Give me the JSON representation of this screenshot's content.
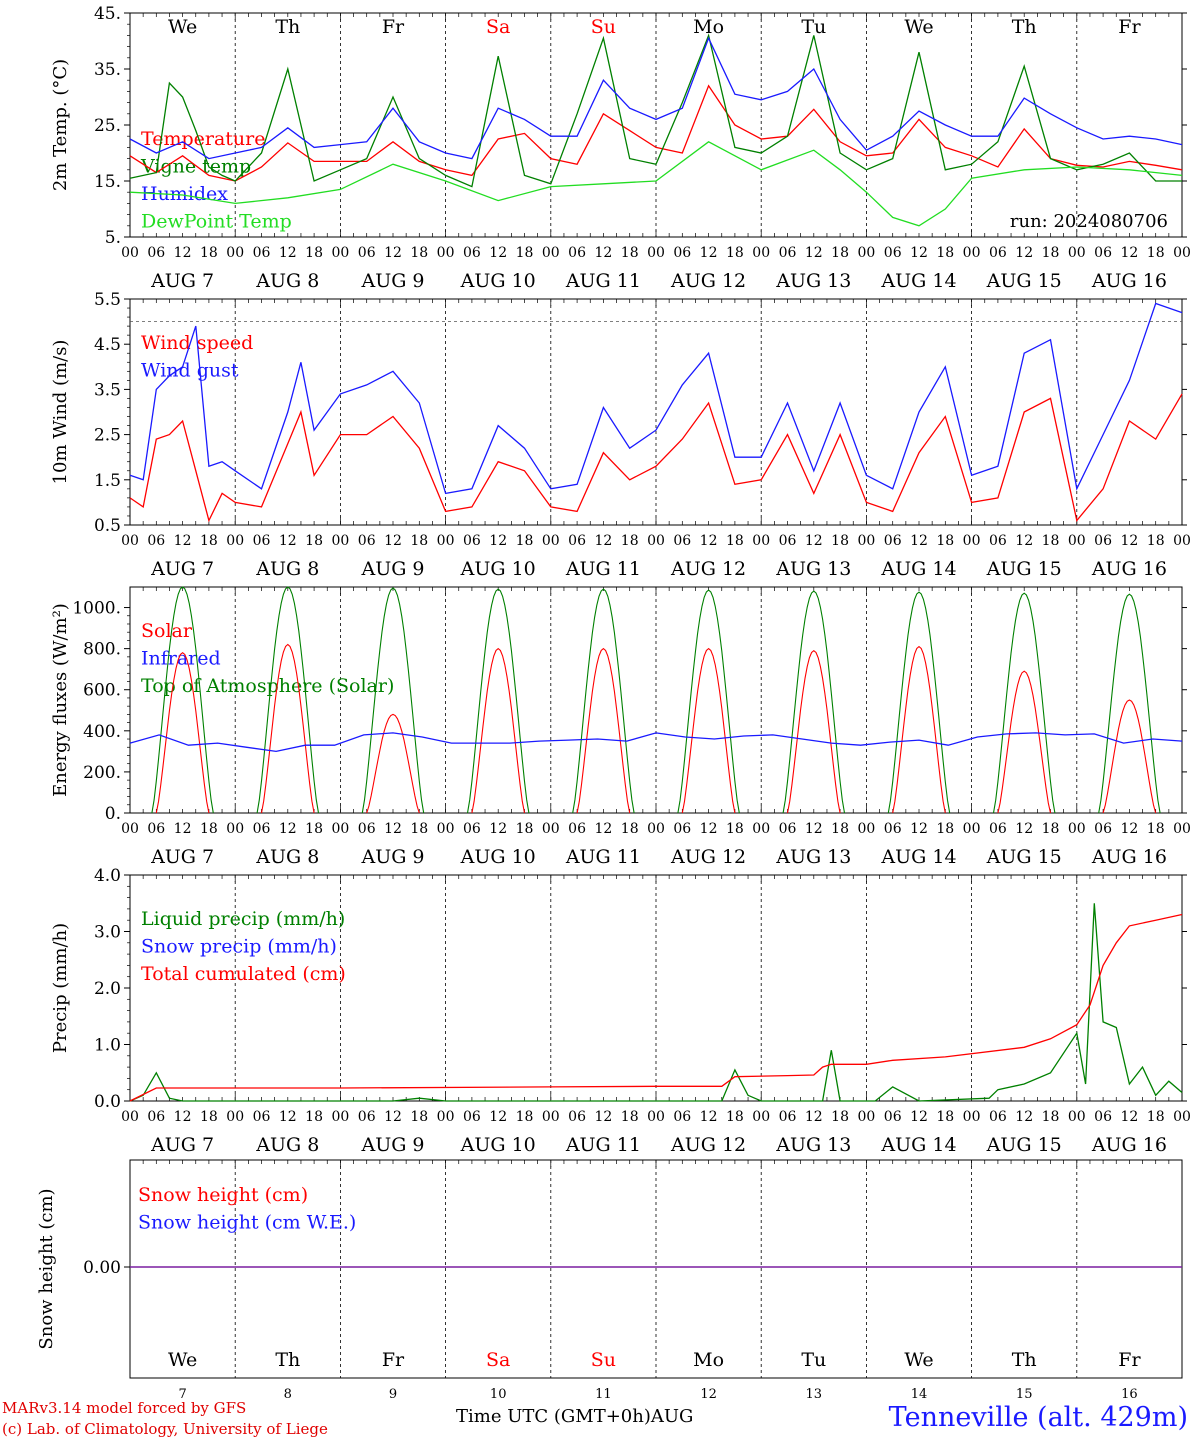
{
  "run_label": "run: 2024080706",
  "station": "Tenneville (alt. 429m)",
  "model_line": "MARv3.14 model forced by GFS",
  "lab_line": "(c) Lab. of Climatology, University of Liege",
  "time_axis_label": "Time UTC (GMT+0h)AUG",
  "colors": {
    "red": "#ff0000",
    "blue": "#1a1aff",
    "green": "#008000",
    "lightgreen": "#22dd22",
    "purple": "#7a1fa0"
  },
  "chart_data": {
    "type": "line",
    "days": [
      {
        "date": "AUG  7",
        "weekday": "We",
        "daynum": "7",
        "weekend": false
      },
      {
        "date": "AUG  8",
        "weekday": "Th",
        "daynum": "8",
        "weekend": false
      },
      {
        "date": "AUG  9",
        "weekday": "Fr",
        "daynum": "9",
        "weekend": false
      },
      {
        "date": "AUG 10",
        "weekday": "Sa",
        "daynum": "10",
        "weekend": true
      },
      {
        "date": "AUG 11",
        "weekday": "Su",
        "daynum": "11",
        "weekend": true
      },
      {
        "date": "AUG 12",
        "weekday": "Mo",
        "daynum": "12",
        "weekend": false
      },
      {
        "date": "AUG 13",
        "weekday": "Tu",
        "daynum": "13",
        "weekend": false
      },
      {
        "date": "AUG 14",
        "weekday": "We",
        "daynum": "14",
        "weekend": false
      },
      {
        "date": "AUG 15",
        "weekday": "Th",
        "daynum": "15",
        "weekend": false
      },
      {
        "date": "AUG 16",
        "weekday": "Fr",
        "daynum": "16",
        "weekend": false
      }
    ],
    "hour_ticks": [
      "00",
      "06",
      "12",
      "18"
    ],
    "end_tick": "00",
    "panels": [
      {
        "id": "temp",
        "ylabel": "2m Temp. (°C)",
        "ylim": [
          5,
          45
        ],
        "yticks": [
          5,
          15,
          25,
          35,
          45
        ],
        "yticklabels": [
          "5.",
          "15.",
          "25.",
          "35.",
          "45."
        ],
        "grid": "vertical dashed at day boundaries",
        "legend": [
          {
            "label": "Temperature",
            "color": "red"
          },
          {
            "label": "Vigne temp",
            "color": "green"
          },
          {
            "label": "Humidex",
            "color": "blue"
          },
          {
            "label": "DewPoint Temp",
            "color": "lightgreen"
          }
        ],
        "series": [
          {
            "name": "Temperature",
            "color": "red",
            "x_hours": [
              0,
              6,
              12,
              18,
              24,
              30,
              36,
              42,
              48,
              54,
              60,
              66,
              72,
              78,
              84,
              90,
              96,
              102,
              108,
              114,
              120,
              126,
              132,
              138,
              144,
              150,
              156,
              162,
              168,
              174,
              180,
              186,
              192,
              198,
              204,
              210,
              216,
              222,
              228,
              234,
              240
            ],
            "y": [
              19.5,
              16.5,
              19.5,
              16,
              15,
              17.5,
              21.8,
              18.5,
              18.5,
              18.5,
              22,
              18.5,
              17,
              16,
              22.5,
              23.5,
              19,
              18,
              27,
              24,
              21,
              20,
              32,
              25,
              22.5,
              23,
              27.8,
              22,
              19.5,
              20,
              26,
              21,
              19.5,
              17.5,
              24.3,
              19,
              17.8,
              17.5,
              18.5,
              17.8,
              17
            ]
          },
          {
            "name": "Vigne temp",
            "color": "green",
            "x_hours": [
              0,
              6,
              9,
              12,
              15,
              18,
              21,
              24,
              30,
              36,
              42,
              48,
              54,
              60,
              66,
              72,
              78,
              84,
              90,
              96,
              102,
              108,
              114,
              120,
              126,
              132,
              138,
              144,
              150,
              156,
              162,
              168,
              174,
              180,
              186,
              192,
              198,
              204,
              210,
              216,
              222,
              228,
              234,
              240
            ],
            "y": [
              15.5,
              16.5,
              32.5,
              30,
              24,
              17.5,
              16,
              15,
              20,
              35,
              15,
              17,
              19,
              30,
              19,
              16,
              14,
              37.3,
              16,
              14.5,
              27,
              40.5,
              19,
              18,
              29,
              41,
              21,
              20,
              23,
              41,
              20,
              17,
              19,
              38,
              17,
              18,
              22,
              35.5,
              19,
              17,
              18,
              20,
              15,
              15
            ]
          },
          {
            "name": "Humidex",
            "color": "blue",
            "x_hours": [
              0,
              6,
              12,
              18,
              24,
              30,
              36,
              42,
              48,
              54,
              60,
              66,
              72,
              78,
              84,
              90,
              96,
              102,
              108,
              114,
              120,
              126,
              132,
              138,
              144,
              150,
              156,
              162,
              168,
              174,
              180,
              186,
              192,
              198,
              204,
              210,
              216,
              222,
              228,
              234,
              240
            ],
            "y": [
              22.5,
              20,
              22,
              19,
              20,
              21,
              24.5,
              21,
              21.5,
              22,
              28,
              22,
              20,
              19,
              28,
              26,
              23,
              23,
              33,
              28,
              26,
              28,
              40.5,
              30.5,
              29.5,
              31,
              35,
              26,
              20.5,
              23,
              27.5,
              25,
              23,
              23,
              29.8,
              27,
              24.5,
              22.5,
              23,
              22.5,
              21.5
            ]
          },
          {
            "name": "DewPoint Temp",
            "color": "lightgreen",
            "x_hours": [
              0,
              12,
              24,
              36,
              48,
              60,
              72,
              84,
              96,
              108,
              120,
              132,
              138,
              144,
              156,
              162,
              168,
              174,
              180,
              186,
              192,
              204,
              216,
              228,
              240
            ],
            "y": [
              13,
              12.5,
              11,
              12,
              13.5,
              18,
              15,
              11.5,
              14,
              14.5,
              15,
              22,
              19.5,
              17,
              20.5,
              17,
              13,
              8.5,
              7,
              10,
              15.5,
              17,
              17.5,
              17,
              16
            ]
          }
        ]
      },
      {
        "id": "wind",
        "ylabel": "10m Wind (m/s)",
        "ylim": [
          0.5,
          5.5
        ],
        "yticks": [
          0.5,
          1.5,
          2.5,
          3.5,
          4.5,
          5.5
        ],
        "yticklabels": [
          "0.5",
          "1.5",
          "2.5",
          "3.5",
          "4.5",
          "5.5"
        ],
        "hline": 5.0,
        "legend": [
          {
            "label": "Wind speed",
            "color": "red"
          },
          {
            "label": "Wind gust",
            "color": "blue"
          }
        ],
        "series": [
          {
            "name": "Wind speed",
            "color": "red",
            "x_hours": [
              0,
              3,
              6,
              9,
              12,
              15,
              18,
              21,
              24,
              30,
              36,
              39,
              42,
              48,
              54,
              60,
              66,
              72,
              78,
              84,
              90,
              96,
              102,
              108,
              114,
              120,
              126,
              132,
              138,
              144,
              150,
              156,
              162,
              168,
              174,
              180,
              186,
              192,
              198,
              204,
              210,
              216,
              222,
              228,
              234,
              240
            ],
            "y": [
              1.1,
              0.9,
              2.4,
              2.5,
              2.8,
              1.7,
              0.6,
              1.2,
              1.0,
              0.9,
              2.3,
              3.0,
              1.6,
              2.5,
              2.5,
              2.9,
              2.2,
              0.8,
              0.9,
              1.9,
              1.7,
              0.9,
              0.8,
              2.1,
              1.5,
              1.8,
              2.4,
              3.2,
              1.4,
              1.5,
              2.5,
              1.2,
              2.5,
              1.0,
              0.8,
              2.1,
              2.9,
              1.0,
              1.1,
              3.0,
              3.3,
              0.6,
              1.3,
              2.8,
              2.4,
              3.4
            ]
          },
          {
            "name": "Wind gust",
            "color": "blue",
            "x_hours": [
              0,
              3,
              6,
              9,
              12,
              15,
              18,
              21,
              24,
              30,
              36,
              39,
              42,
              48,
              54,
              60,
              66,
              72,
              78,
              84,
              90,
              96,
              102,
              108,
              114,
              120,
              126,
              132,
              138,
              144,
              150,
              156,
              162,
              168,
              174,
              180,
              186,
              192,
              198,
              204,
              210,
              216,
              222,
              228,
              234,
              240
            ],
            "y": [
              1.6,
              1.5,
              3.5,
              3.8,
              4.0,
              4.9,
              1.8,
              1.9,
              1.7,
              1.3,
              3.0,
              4.1,
              2.6,
              3.4,
              3.6,
              3.9,
              3.2,
              1.2,
              1.3,
              2.7,
              2.2,
              1.3,
              1.4,
              3.1,
              2.2,
              2.6,
              3.6,
              4.3,
              2.0,
              2.0,
              3.2,
              1.7,
              3.2,
              1.6,
              1.3,
              3.0,
              4.0,
              1.6,
              1.8,
              4.3,
              4.6,
              1.3,
              2.5,
              3.7,
              5.4,
              5.2
            ]
          }
        ]
      },
      {
        "id": "energy",
        "ylabel": "Energy fluxes (W/m²)",
        "ylim": [
          0,
          1100
        ],
        "yticks": [
          0,
          200,
          400,
          600,
          800,
          1000
        ],
        "yticklabels": [
          "0.",
          "200.",
          "400.",
          "600.",
          "800.",
          "1000."
        ],
        "legend": [
          {
            "label": "Solar",
            "color": "red"
          },
          {
            "label": "Infrared",
            "color": "blue"
          },
          {
            "label": "Top of Atmosphere (Solar)",
            "color": "green"
          }
        ],
        "toa_daily_peaks": [
          1100,
          1100,
          1095,
          1090,
          1090,
          1085,
          1080,
          1075,
          1070,
          1065
        ],
        "solar_daily_peaks": [
          780,
          820,
          480,
          800,
          800,
          800,
          790,
          810,
          690,
          550
        ],
        "infrared_values": [
          340,
          380,
          330,
          340,
          320,
          300,
          330,
          330,
          380,
          390,
          370,
          340,
          340,
          340,
          350,
          355,
          360,
          350,
          390,
          370,
          360,
          375,
          380,
          360,
          340,
          330,
          345,
          355,
          330,
          370,
          385,
          390,
          380,
          385,
          340,
          360,
          350
        ]
      },
      {
        "id": "precip",
        "ylabel": "Precip (mm/h)",
        "ylim": [
          0,
          4
        ],
        "yticks": [
          0,
          1,
          2,
          3,
          4
        ],
        "yticklabels": [
          "0.0",
          "1.0",
          "2.0",
          "3.0",
          "4.0"
        ],
        "legend": [
          {
            "label": "Liquid precip (mm/h)",
            "color": "green"
          },
          {
            "label": "Snow precip (mm/h)",
            "color": "blue"
          },
          {
            "label": "Total cumulated (cm)",
            "color": "red"
          }
        ],
        "series": [
          {
            "name": "Liquid precip (mm/h)",
            "color": "green",
            "x_hours": [
              0,
              3,
              6,
              9,
              12,
              60,
              66,
              72,
              135,
              138,
              141,
              144,
              150,
              158,
              160,
              162,
              170,
              174,
              180,
              196,
              198,
              204,
              210,
              216,
              218,
              220,
              222,
              225,
              228,
              231,
              234,
              237,
              240
            ],
            "y": [
              0,
              0.1,
              0.5,
              0.05,
              0,
              0,
              0.05,
              0,
              0,
              0.55,
              0.1,
              0,
              0,
              0,
              0.9,
              0,
              0,
              0.25,
              0,
              0.05,
              0.2,
              0.3,
              0.5,
              1.2,
              0.3,
              3.5,
              1.4,
              1.3,
              0.3,
              0.6,
              0.1,
              0.35,
              0.15
            ]
          },
          {
            "name": "Total cumulated (cm)",
            "color": "red",
            "x_hours": [
              0,
              6,
              12,
              48,
              96,
              120,
              132,
              135,
              138,
              150,
              156,
              158,
              160,
              168,
              174,
              186,
              204,
              210,
              216,
              219,
              222,
              225,
              228,
              234,
              240
            ],
            "y": [
              0,
              0.23,
              0.23,
              0.23,
              0.25,
              0.26,
              0.26,
              0.26,
              0.43,
              0.45,
              0.46,
              0.6,
              0.65,
              0.65,
              0.72,
              0.78,
              0.95,
              1.1,
              1.35,
              1.7,
              2.4,
              2.8,
              3.1,
              3.2,
              3.3
            ]
          }
        ]
      },
      {
        "id": "snow",
        "ylabel": "Snow height (cm)",
        "yticklabels": [
          "0.00"
        ],
        "legend": [
          {
            "label": "Snow height (cm)",
            "color": "red"
          },
          {
            "label": "Snow height (cm W.E.)",
            "color": "blue"
          }
        ],
        "values_cm": [
          0,
          0
        ],
        "values_we": [
          0,
          0
        ]
      }
    ]
  }
}
